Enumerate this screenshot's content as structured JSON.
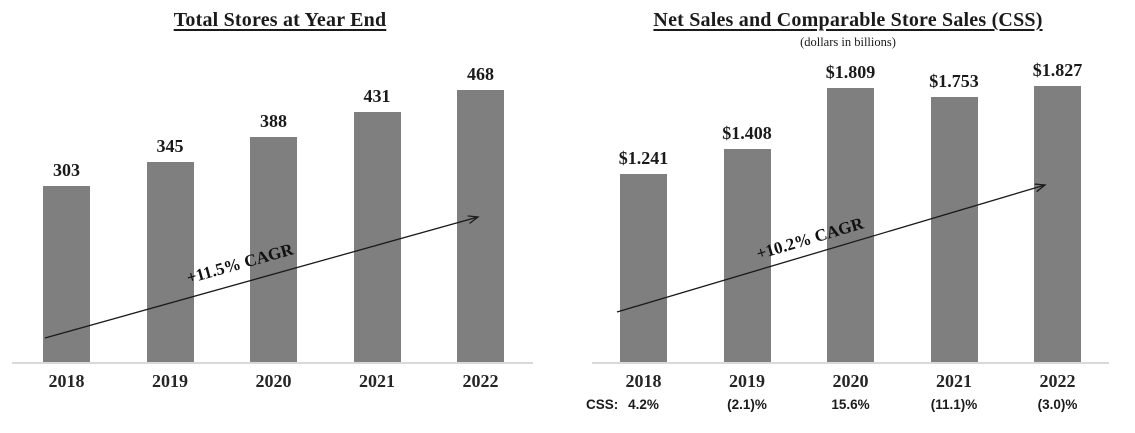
{
  "colors": {
    "bar": "#7f7f7f",
    "axis": "#d9d9d9",
    "text": "#1a1a1a",
    "background": "#ffffff"
  },
  "chart_data": [
    {
      "type": "bar",
      "title": "Total Stores at Year End",
      "subtitle": "",
      "categories": [
        "2018",
        "2019",
        "2020",
        "2021",
        "2022"
      ],
      "values": [
        303,
        345,
        388,
        431,
        468
      ],
      "value_labels": [
        "303",
        "345",
        "388",
        "431",
        "468"
      ],
      "annotation": "+11.5% CAGR",
      "xlabel": "",
      "ylabel": "",
      "ylim": [
        0,
        500
      ],
      "grid": false,
      "legend": false,
      "bar_color": "#7f7f7f",
      "axis_color": "#d9d9d9"
    },
    {
      "type": "bar",
      "title": "Net Sales and Comparable Store Sales (CSS)",
      "subtitle": "(dollars in billions)",
      "categories": [
        "2018",
        "2019",
        "2020",
        "2021",
        "2022"
      ],
      "values": [
        1.241,
        1.408,
        1.809,
        1.753,
        1.827
      ],
      "value_labels": [
        "$1.241",
        "$1.408",
        "$1.809",
        "$1.753",
        "$1.827"
      ],
      "annotation": "+10.2% CAGR",
      "footer_row": {
        "label": "CSS:",
        "values": [
          "4.2%",
          "(2.1)%",
          "15.6%",
          "(11.1)%",
          "(3.0)%"
        ]
      },
      "xlabel": "",
      "ylabel": "",
      "ylim": [
        0,
        2.0
      ],
      "grid": false,
      "legend": false,
      "bar_color": "#7f7f7f",
      "axis_color": "#d9d9d9"
    }
  ]
}
